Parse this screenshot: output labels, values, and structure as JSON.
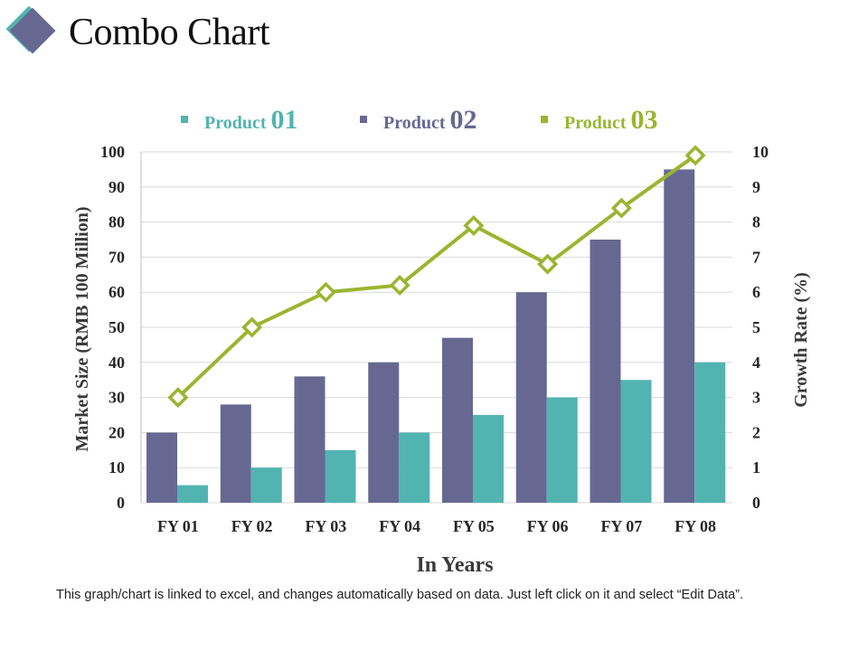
{
  "page": {
    "title": "Combo Chart",
    "footnote": "This graph/chart is linked to excel, and changes automatically based on data. Just left click on it and select “Edit Data”."
  },
  "colors": {
    "product01": "#52b4b1",
    "product02": "#676892",
    "product03": "#9ab530",
    "grid": "#d9d9d9",
    "icon_back": "#52b4b1",
    "icon_front": "#676892"
  },
  "chart_data": {
    "type": "bar",
    "title": "",
    "categories": [
      "FY 01",
      "FY 02",
      "FY 03",
      "FY 04",
      "FY 05",
      "FY 06",
      "FY 07",
      "FY 08"
    ],
    "series": [
      {
        "name": "Product 01",
        "name_text": "Product",
        "name_num": "01",
        "type": "bar",
        "axis": "left",
        "color_key": "product01",
        "values": [
          5,
          10,
          15,
          20,
          25,
          30,
          35,
          40
        ]
      },
      {
        "name": "Product 02",
        "name_text": "Product",
        "name_num": "02",
        "type": "bar",
        "axis": "left",
        "color_key": "product02",
        "values": [
          20,
          28,
          36,
          40,
          47,
          60,
          75,
          95
        ]
      },
      {
        "name": "Product 03",
        "name_text": "Product",
        "name_num": "03",
        "type": "line",
        "axis": "right",
        "color_key": "product03",
        "values": [
          3,
          5,
          6,
          6.2,
          7.9,
          6.8,
          8.4,
          9.9
        ]
      }
    ],
    "bar_order": [
      "Product 02",
      "Product 01"
    ],
    "xlabel": "In Years",
    "ylabel": "Market Size (RMB 100 Million)",
    "y2label": "Growth Rate (%)",
    "ylim": [
      0,
      100
    ],
    "y2lim": [
      0,
      10
    ],
    "yticks": [
      "0",
      "10",
      "20",
      "30",
      "40",
      "50",
      "60",
      "70",
      "80",
      "90",
      "100"
    ],
    "y2ticks": [
      "0",
      "1",
      "2",
      "3",
      "4",
      "5",
      "6",
      "7",
      "8",
      "9",
      "10"
    ],
    "grid": true,
    "legend_position": "top"
  }
}
